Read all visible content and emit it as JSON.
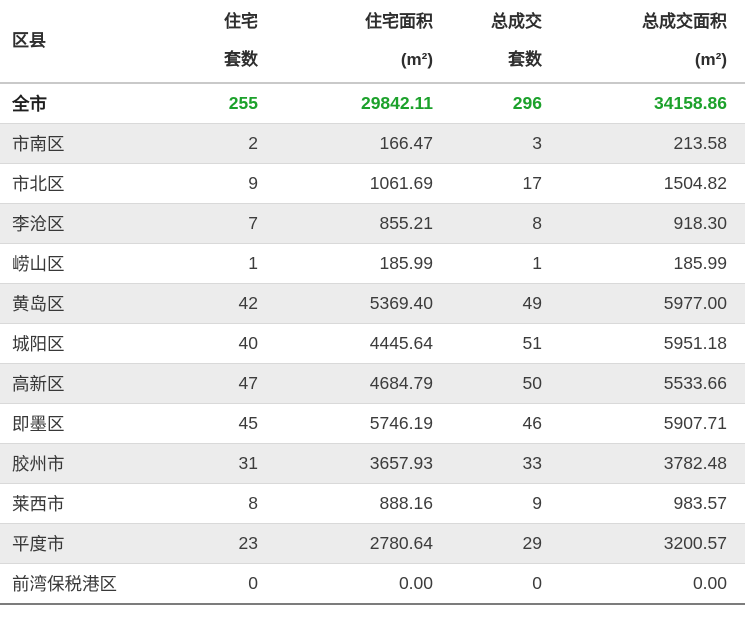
{
  "colors": {
    "total_value_green": "#1ca12b",
    "alt_row_background": "#ececec",
    "row_separator": "#d9d9d9",
    "header_separator": "#c9c9c9",
    "bottom_border": "#7c7c7c",
    "body_text": "#3c3c3c",
    "header_text": "#2e2e2e"
  },
  "chart_data": {
    "type": "table",
    "title": "",
    "columns": [
      {
        "line1": "区县",
        "line2": ""
      },
      {
        "line1": "住宅",
        "line2": "套数"
      },
      {
        "line1": "住宅面积",
        "line2": "(m²)"
      },
      {
        "line1": "总成交",
        "line2": "套数"
      },
      {
        "line1": "总成交面积",
        "line2": "(m²)"
      }
    ],
    "rows": [
      [
        "全市",
        "255",
        "29842.11",
        "296",
        "34158.86"
      ],
      [
        "市南区",
        "2",
        "166.47",
        "3",
        "213.58"
      ],
      [
        "市北区",
        "9",
        "1061.69",
        "17",
        "1504.82"
      ],
      [
        "李沧区",
        "7",
        "855.21",
        "8",
        "918.30"
      ],
      [
        "崂山区",
        "1",
        "185.99",
        "1",
        "185.99"
      ],
      [
        "黄岛区",
        "42",
        "5369.40",
        "49",
        "5977.00"
      ],
      [
        "城阳区",
        "40",
        "4445.64",
        "51",
        "5951.18"
      ],
      [
        "高新区",
        "47",
        "4684.79",
        "50",
        "5533.66"
      ],
      [
        "即墨区",
        "45",
        "5746.19",
        "46",
        "5907.71"
      ],
      [
        "胶州市",
        "31",
        "3657.93",
        "33",
        "3782.48"
      ],
      [
        "莱西市",
        "8",
        "888.16",
        "9",
        "983.57"
      ],
      [
        "平度市",
        "23",
        "2780.64",
        "29",
        "3200.57"
      ],
      [
        "前湾保税港区",
        "0",
        "0.00",
        "0",
        "0.00"
      ]
    ],
    "layout": {
      "total_row_index": 0,
      "alternating_shading_starts_at_row": 1,
      "numeric_columns_alignment": "right"
    }
  }
}
